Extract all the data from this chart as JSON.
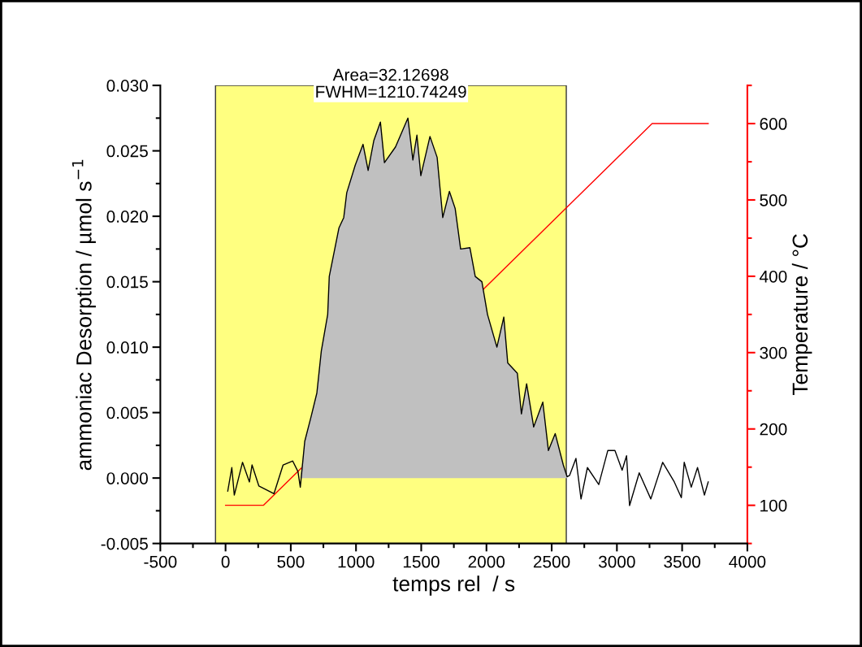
{
  "chart_data": {
    "type": "line",
    "xlabel": "temps rel  / s",
    "ylabel": "ammoniac Desorption / µmol s$^{−1}$",
    "y2label": "Temperature / °C",
    "xlim": [
      -500,
      4000
    ],
    "xticks": [
      -500,
      0,
      500,
      1000,
      1500,
      2000,
      2500,
      3000,
      3500,
      4000
    ],
    "ylim": [
      -0.005,
      0.03
    ],
    "yticks": [
      {
        "value": -0.005,
        "label": "-0.005"
      },
      {
        "value": 0,
        "label": "0.000"
      },
      {
        "value": 0.005,
        "label": "0.005"
      },
      {
        "value": 0.01,
        "label": "0.010"
      },
      {
        "value": 0.015,
        "label": "0.015"
      },
      {
        "value": 0.02,
        "label": "0.020"
      },
      {
        "value": 0.025,
        "label": "0.025"
      },
      {
        "value": 0.03,
        "label": "0.030"
      }
    ],
    "y2lim": [
      50,
      650
    ],
    "y2ticks": [
      100,
      200,
      300,
      400,
      500,
      600
    ],
    "bands": [
      {
        "axis": "x",
        "from": -77,
        "to": 2612,
        "color": "#ffff80"
      }
    ],
    "annotations": [
      "Area=32.12698",
      "FWHM=1210.74249"
    ],
    "series": [
      {
        "type": "area",
        "color": "#c0c0c0",
        "x": [
          573,
          607,
          656,
          700,
          734,
          783,
          795,
          837,
          869,
          906,
          929,
          994,
          1054,
          1093,
          1137,
          1187,
          1218,
          1303,
          1398,
          1436,
          1467,
          1497,
          1567,
          1622,
          1665,
          1716,
          1760,
          1802,
          1873,
          1914,
          1965,
          2008,
          2080,
          2133,
          2163,
          2237,
          2268,
          2308,
          2362,
          2432,
          2475,
          2527,
          2589,
          2618
        ],
        "values": [
          0,
          0.0028,
          0.0047,
          0.0065,
          0.0097,
          0.0125,
          0.0154,
          0.0175,
          0.0191,
          0.0199,
          0.0218,
          0.0239,
          0.0255,
          0.0235,
          0.0258,
          0.0272,
          0.0241,
          0.0253,
          0.0275,
          0.0243,
          0.0262,
          0.0231,
          0.0261,
          0.0245,
          0.0199,
          0.0219,
          0.0206,
          0.0175,
          0.0176,
          0.0154,
          0.015,
          0.0125,
          0.01,
          0.0123,
          0.0088,
          0.008,
          0.0049,
          0.0072,
          0.0039,
          0.0058,
          0.0021,
          0.0034,
          0.001,
          0.0001
        ]
      },
      {
        "color": "#000000",
        "x": [
          17,
          48,
          67,
          130,
          183,
          203,
          255,
          371,
          441,
          515,
          555,
          573,
          607,
          656,
          700,
          734,
          783,
          795,
          837,
          869,
          906,
          929,
          994,
          1054,
          1093,
          1137,
          1187,
          1218,
          1303,
          1398,
          1436,
          1467,
          1497,
          1567,
          1622,
          1665,
          1716,
          1760,
          1802,
          1873,
          1914,
          1965,
          2008,
          2080,
          2133,
          2163,
          2237,
          2268,
          2308,
          2362,
          2432,
          2475,
          2527,
          2589,
          2618,
          2637,
          2686,
          2725,
          2774,
          2861,
          2930,
          2985,
          3040,
          3074,
          3097,
          3171,
          3260,
          3351,
          3440,
          3494,
          3516,
          3570,
          3618,
          3671,
          3700
        ],
        "values": [
          -0.001,
          0.0008,
          -0.0013,
          0.0012,
          -0.0003,
          0.001,
          -0.0006,
          -0.0012,
          0.001,
          0.0013,
          0.0005,
          -0.0007,
          0.0028,
          0.0047,
          0.0065,
          0.0097,
          0.0125,
          0.0154,
          0.0175,
          0.0191,
          0.0199,
          0.0218,
          0.0239,
          0.0255,
          0.0235,
          0.0258,
          0.0272,
          0.0241,
          0.0253,
          0.0275,
          0.0243,
          0.0262,
          0.0231,
          0.0261,
          0.0245,
          0.0199,
          0.0219,
          0.0206,
          0.0175,
          0.0176,
          0.0154,
          0.015,
          0.0125,
          0.01,
          0.0123,
          0.0088,
          0.008,
          0.0049,
          0.0072,
          0.0039,
          0.0058,
          0.0021,
          0.0034,
          0.001,
          0.0001,
          0.0002,
          0.0015,
          -0.0016,
          0.0008,
          -0.0005,
          0.0021,
          0.0021,
          0.0006,
          0.0017,
          -0.0021,
          0.0004,
          -0.0016,
          0.0012,
          -0.0003,
          -0.0015,
          0.0012,
          -0.0007,
          0.0008,
          -0.0013,
          -0.0003
        ]
      },
      {
        "type": "line",
        "color": "#ff0000",
        "axis": "y2",
        "x": [
          0,
          290,
          3270,
          3700
        ],
        "values": [
          100,
          100,
          600,
          600
        ]
      }
    ]
  }
}
